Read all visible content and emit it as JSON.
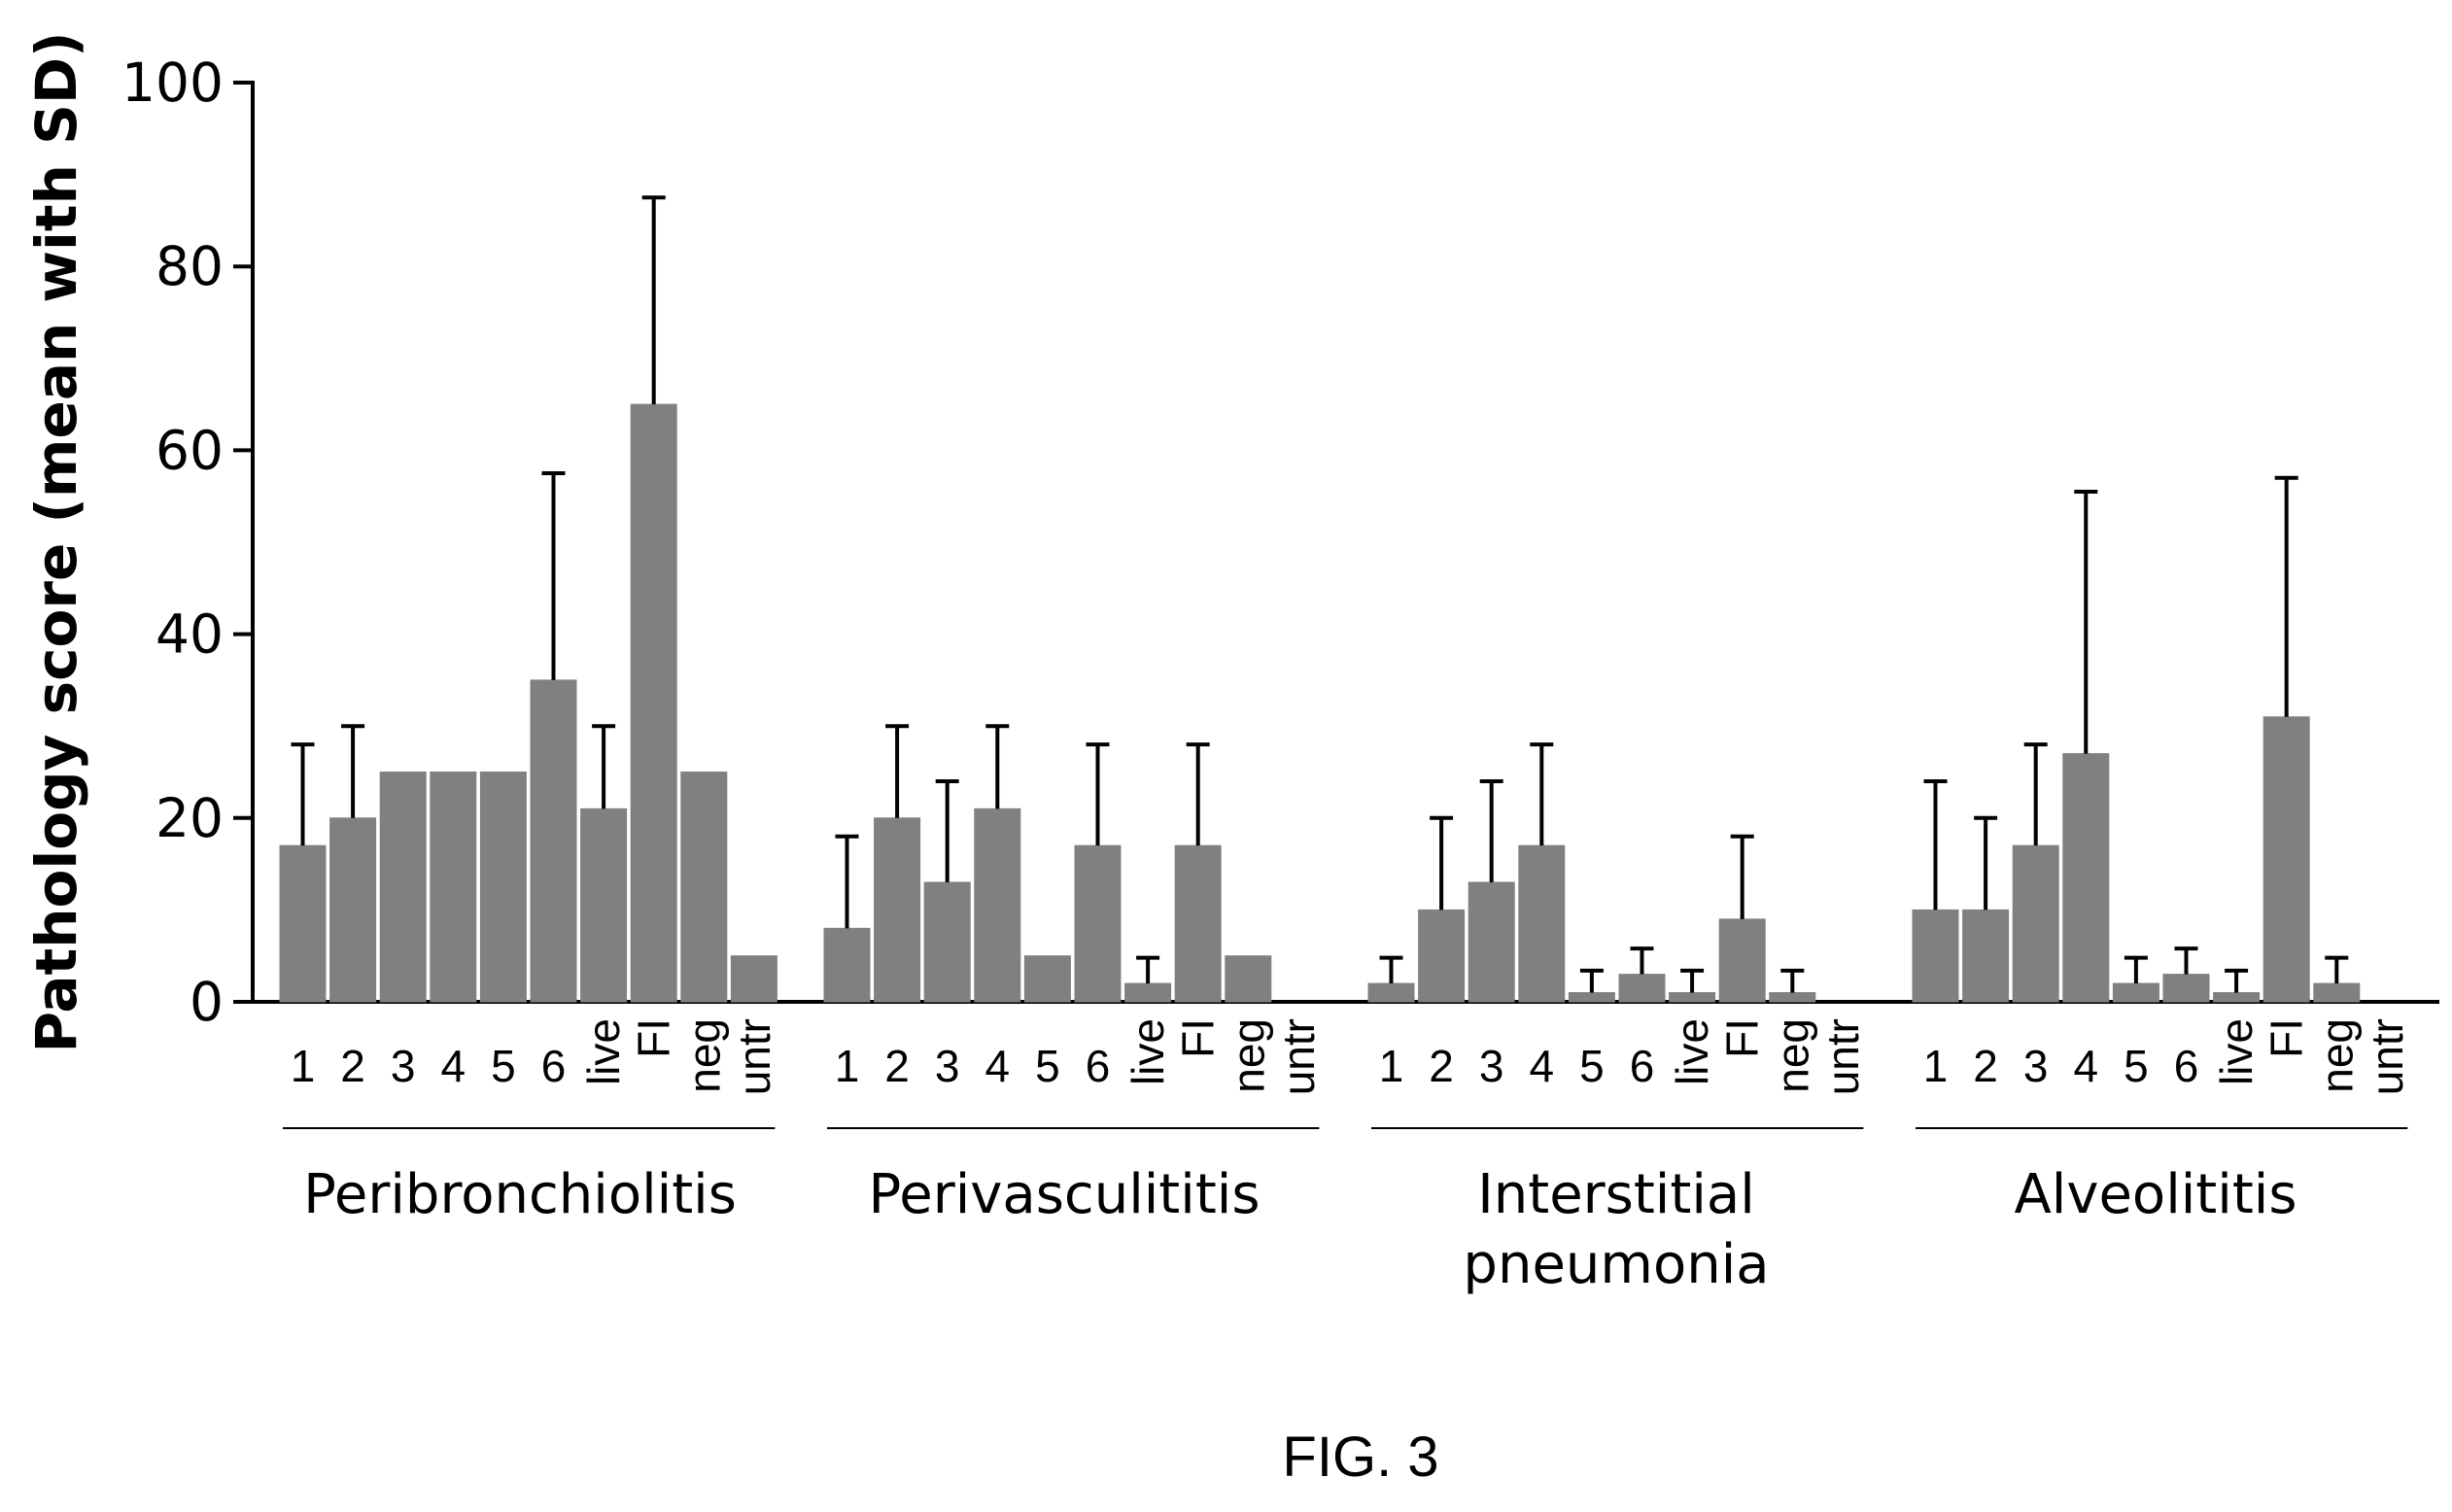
{
  "chart_data": {
    "type": "bar",
    "ylabel": "Pathology score (mean with SD)",
    "ylim": [
      0,
      100
    ],
    "yticks": [
      0,
      20,
      40,
      60,
      80,
      100
    ],
    "grid": false,
    "legend": "none",
    "bar_color": "#808080",
    "caption": "FIG. 3",
    "groups": [
      {
        "name": "Peribronchiolitis",
        "categories": [
          "1",
          "2",
          "3",
          "4",
          "5",
          "6",
          "live",
          "FI",
          "neg",
          "untr"
        ],
        "values": [
          17,
          20,
          25,
          25,
          25,
          35,
          21,
          65,
          25,
          5
        ],
        "sd": [
          11,
          10,
          0,
          0,
          0,
          22.5,
          9,
          22.5,
          0,
          0
        ]
      },
      {
        "name": "Perivasculititis",
        "categories": [
          "1",
          "2",
          "3",
          "4",
          "5",
          "6",
          "live",
          "FI",
          "neg",
          "untr"
        ],
        "values": [
          8,
          20,
          13,
          21,
          5,
          17,
          2,
          17,
          5,
          0
        ],
        "sd": [
          10,
          10,
          11,
          9,
          0,
          11,
          2.8,
          11,
          0,
          0
        ]
      },
      {
        "name": "Interstitial pneumonia",
        "name_lines": [
          "Interstitial",
          "pneumonia"
        ],
        "categories": [
          "1",
          "2",
          "3",
          "4",
          "5",
          "6",
          "live",
          "FI",
          "neg",
          "untr"
        ],
        "values": [
          2,
          10,
          13,
          17,
          1,
          3,
          1,
          9,
          1,
          0
        ],
        "sd": [
          2.8,
          10,
          11,
          11,
          2.4,
          2.8,
          2.4,
          9,
          2.4,
          0
        ]
      },
      {
        "name": "Alveolititis",
        "categories": [
          "1",
          "2",
          "3",
          "4",
          "5",
          "6",
          "live",
          "FI",
          "neg",
          "untr"
        ],
        "values": [
          10,
          10,
          17,
          27,
          2,
          3,
          1,
          31,
          2,
          0
        ],
        "sd": [
          14,
          10,
          11,
          28.5,
          2.8,
          2.8,
          2.4,
          26,
          2.8,
          0
        ]
      }
    ]
  }
}
